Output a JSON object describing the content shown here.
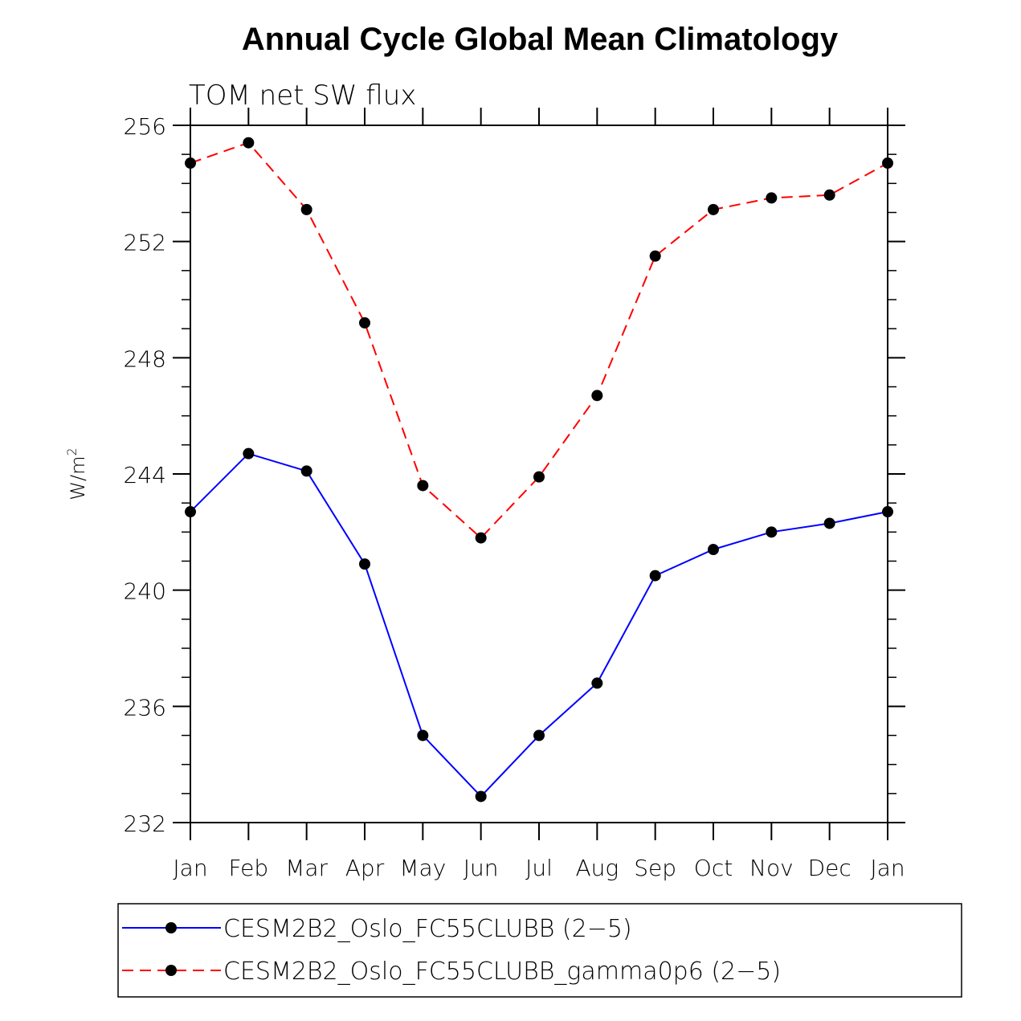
{
  "chart_data": {
    "type": "line",
    "title": "Annual Cycle Global Mean Climatology",
    "subtitle": "TOM net SW flux",
    "ylabel_base": "W/m",
    "ylabel_sup": "2",
    "xlabel": "",
    "categories": [
      "Jan",
      "Feb",
      "Mar",
      "Apr",
      "May",
      "Jun",
      "Jul",
      "Aug",
      "Sep",
      "Oct",
      "Nov",
      "Dec",
      "Jan"
    ],
    "ylim": [
      232,
      256
    ],
    "yticks": [
      "232",
      "236",
      "240",
      "244",
      "248",
      "252",
      "256"
    ],
    "series": [
      {
        "name": "CESM2B2_Oslo_FC55CLUBB (2−5)",
        "color": "#0000ff",
        "dash": "solid",
        "values": [
          242.7,
          244.7,
          244.1,
          240.9,
          235.0,
          232.9,
          235.0,
          236.8,
          240.5,
          241.4,
          242.0,
          242.3,
          242.7
        ]
      },
      {
        "name": "CESM2B2_Oslo_FC55CLUBB_gamma0p6 (2−5)",
        "color": "#ff0000",
        "dash": "dashed",
        "values": [
          254.7,
          255.4,
          253.1,
          249.2,
          243.6,
          241.8,
          243.9,
          246.7,
          251.5,
          253.1,
          253.5,
          253.6,
          254.7
        ]
      }
    ],
    "marker_color": "#000000",
    "legend_position": "bottom"
  }
}
